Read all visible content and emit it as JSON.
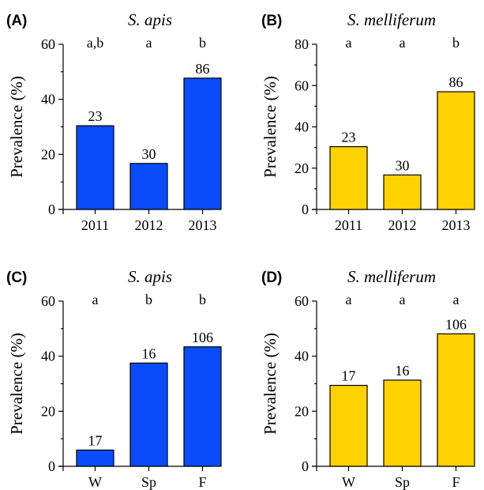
{
  "chart_data": [
    {
      "type": "bar",
      "panel": "(A)",
      "title": "S. apis",
      "xlabel": "",
      "ylabel": "Prevalence (%)",
      "ylim": [
        0,
        60
      ],
      "yticks": [
        "0",
        "20",
        "40",
        "60"
      ],
      "categories": [
        "2011",
        "2012",
        "2013"
      ],
      "values": [
        30.4,
        16.7,
        47.7
      ],
      "bar_labels": [
        "23",
        "30",
        "86"
      ],
      "significance": [
        "a,b",
        "a",
        "b"
      ],
      "color": "#0A4BFA"
    },
    {
      "type": "bar",
      "panel": "(B)",
      "title": "S. melliferum",
      "xlabel": "",
      "ylabel": "Prevalence (%)",
      "ylim": [
        0,
        80
      ],
      "yticks": [
        "0",
        "20",
        "40",
        "60",
        "80"
      ],
      "categories": [
        "2011",
        "2012",
        "2013"
      ],
      "values": [
        30.4,
        16.7,
        57.0
      ],
      "bar_labels": [
        "23",
        "30",
        "86"
      ],
      "significance": [
        "a",
        "a",
        "b"
      ],
      "color": "#FFD200"
    },
    {
      "type": "bar",
      "panel": "(C)",
      "title": "S. apis",
      "xlabel": "",
      "ylabel": "Prevalence (%)",
      "ylim": [
        0,
        60
      ],
      "yticks": [
        "0",
        "20",
        "40",
        "60"
      ],
      "categories": [
        "W",
        "Sp",
        "F"
      ],
      "values": [
        5.9,
        37.5,
        43.4
      ],
      "bar_labels": [
        "17",
        "16",
        "106"
      ],
      "significance": [
        "a",
        "b",
        "b"
      ],
      "color": "#0A4BFA"
    },
    {
      "type": "bar",
      "panel": "(D)",
      "title": "S. melliferum",
      "xlabel": "",
      "ylabel": "Prevalence (%)",
      "ylim": [
        0,
        60
      ],
      "yticks": [
        "0",
        "20",
        "40",
        "60"
      ],
      "categories": [
        "W",
        "Sp",
        "F"
      ],
      "values": [
        29.4,
        31.3,
        48.1
      ],
      "bar_labels": [
        "17",
        "16",
        "106"
      ],
      "significance": [
        "a",
        "a",
        "a"
      ],
      "color": "#FFD200"
    }
  ]
}
